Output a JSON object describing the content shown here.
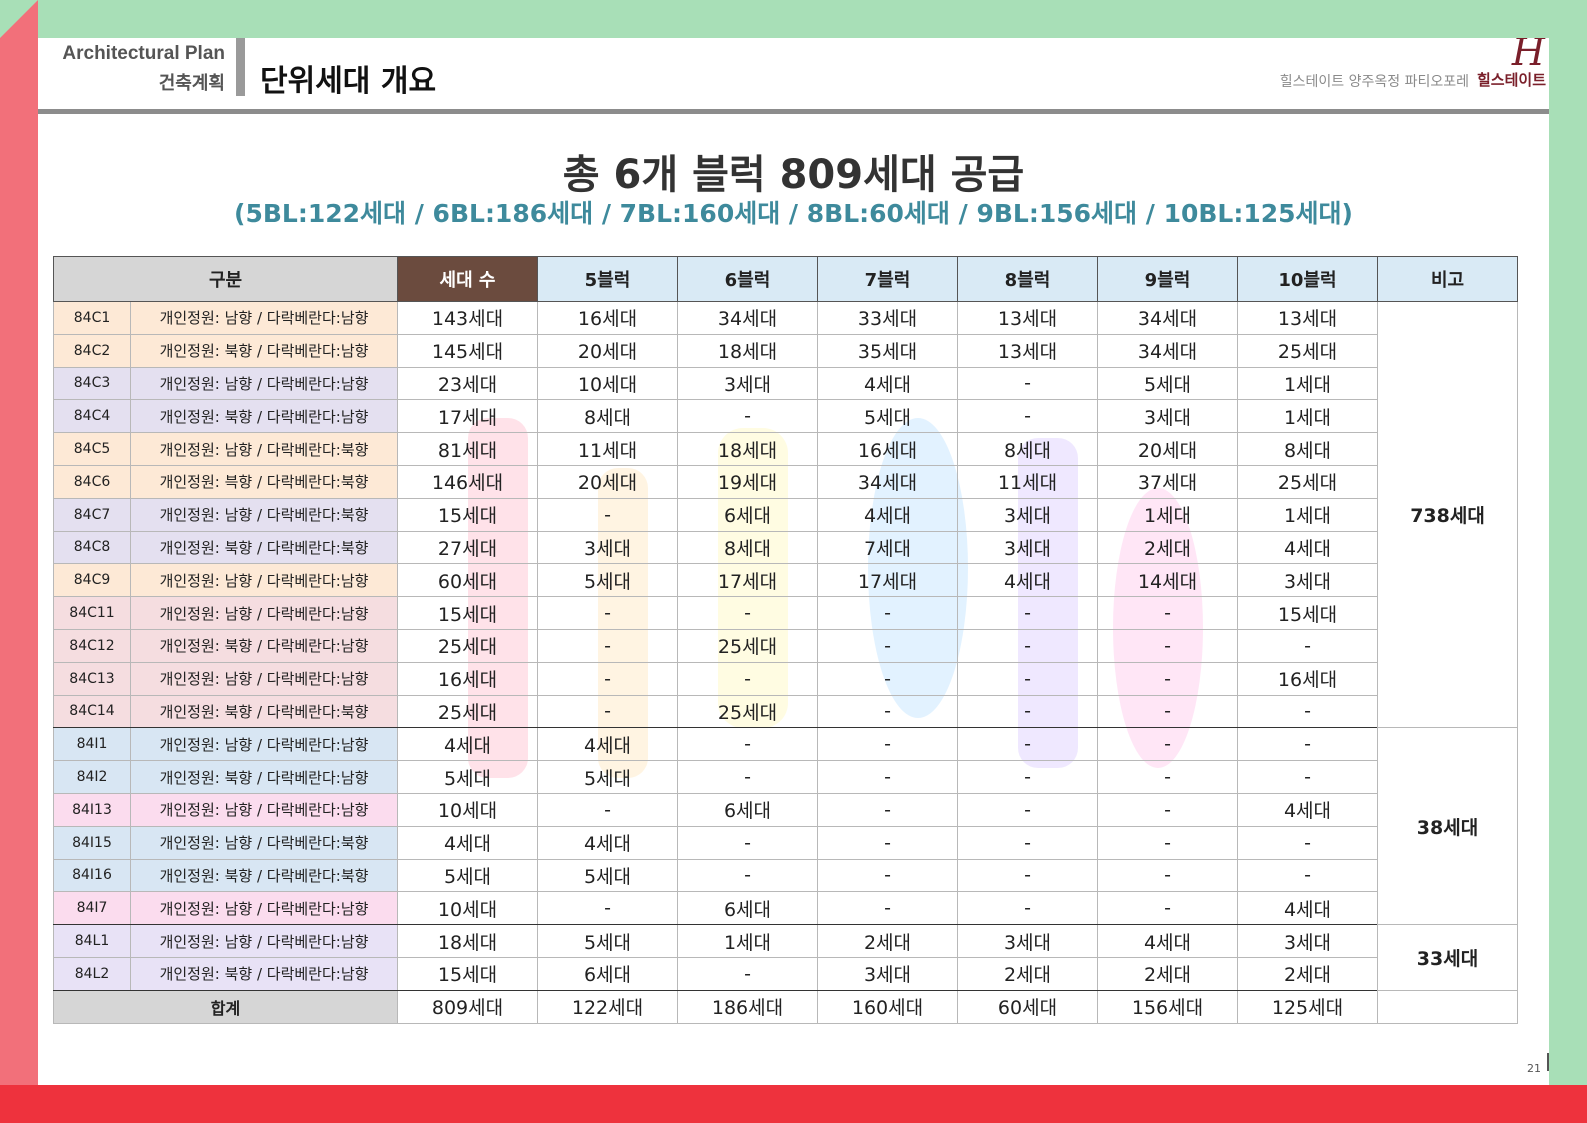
{
  "header": {
    "section_en": "Architectural Plan",
    "section_ko": "건축계획",
    "page_title": "단위세대 개요",
    "project_name": "힐스테이트 양주옥정 파티오포레",
    "brand_name": "힐스테이트",
    "brand_mark": "H"
  },
  "headline": {
    "main": "총 6개 블럭 809세대 공급",
    "sub": "(5BL:122세대 / 6BL:186세대 / 7BL:160세대 / 8BL:60세대 / 9BL:156세대 / 10BL:125세대)"
  },
  "table": {
    "headers": {
      "gubun": "구분",
      "total": "세대 수",
      "blocks": [
        "5블럭",
        "6블럭",
        "7블럭",
        "8블럭",
        "9블럭",
        "10블럭"
      ],
      "note": "비고"
    },
    "rows": [
      {
        "type": "84C1",
        "desc": "개인정원: 남향 / 다락베란다:남향",
        "total": "143세대",
        "blocks": [
          "16세대",
          "34세대",
          "33세대",
          "13세대",
          "34세대",
          "13세대"
        ]
      },
      {
        "type": "84C2",
        "desc": "개인정원: 북향 / 다락베란다:남향",
        "total": "145세대",
        "blocks": [
          "20세대",
          "18세대",
          "35세대",
          "13세대",
          "34세대",
          "25세대"
        ]
      },
      {
        "type": "84C3",
        "desc": "개인정원: 남향 / 다락베란다:남향",
        "total": "23세대",
        "blocks": [
          "10세대",
          "3세대",
          "4세대",
          "-",
          "5세대",
          "1세대"
        ]
      },
      {
        "type": "84C4",
        "desc": "개인정원: 북향 / 다락베란다:남향",
        "total": "17세대",
        "blocks": [
          "8세대",
          "-",
          "5세대",
          "-",
          "3세대",
          "1세대"
        ]
      },
      {
        "type": "84C5",
        "desc": "개인정원: 남향 / 다락베란다:북향",
        "total": "81세대",
        "blocks": [
          "11세대",
          "18세대",
          "16세대",
          "8세대",
          "20세대",
          "8세대"
        ]
      },
      {
        "type": "84C6",
        "desc": "개인정원: 븍향 / 다락베란다:북향",
        "total": "146세대",
        "blocks": [
          "20세대",
          "19세대",
          "34세대",
          "11세대",
          "37세대",
          "25세대"
        ]
      },
      {
        "type": "84C7",
        "desc": "개인정원: 남향 / 다락베란다:북향",
        "total": "15세대",
        "blocks": [
          "-",
          "6세대",
          "4세대",
          "3세대",
          "1세대",
          "1세대"
        ]
      },
      {
        "type": "84C8",
        "desc": "개인정원: 북향 / 다락베란다:북향",
        "total": "27세대",
        "blocks": [
          "3세대",
          "8세대",
          "7세대",
          "3세대",
          "2세대",
          "4세대"
        ]
      },
      {
        "type": "84C9",
        "desc": "개인정원: 남향 / 다락베란다:남향",
        "total": "60세대",
        "blocks": [
          "5세대",
          "17세대",
          "17세대",
          "4세대",
          "14세대",
          "3세대"
        ]
      },
      {
        "type": "84C11",
        "desc": "개인정원: 남향 / 다락베란다:남향",
        "total": "15세대",
        "blocks": [
          "-",
          "-",
          "-",
          "-",
          "-",
          "15세대"
        ]
      },
      {
        "type": "84C12",
        "desc": "개인정원: 북향 / 다락베란다:남향",
        "total": "25세대",
        "blocks": [
          "-",
          "25세대",
          "-",
          "-",
          "-",
          "-"
        ]
      },
      {
        "type": "84C13",
        "desc": "개인정원: 남향 / 다락베란다:남향",
        "total": "16세대",
        "blocks": [
          "-",
          "-",
          "-",
          "-",
          "-",
          "16세대"
        ]
      },
      {
        "type": "84C14",
        "desc": "개인정원: 북향 / 다락베란다:북향",
        "total": "25세대",
        "blocks": [
          "-",
          "25세대",
          "-",
          "-",
          "-",
          "-"
        ]
      },
      {
        "type": "84I1",
        "desc": "개인정원: 남향 / 다락베란다:남향",
        "total": "4세대",
        "blocks": [
          "4세대",
          "-",
          "-",
          "-",
          "-",
          "-"
        ]
      },
      {
        "type": "84I2",
        "desc": "개인정원: 북향 / 다락베란다:남향",
        "total": "5세대",
        "blocks": [
          "5세대",
          "-",
          "-",
          "-",
          "-",
          "-"
        ]
      },
      {
        "type": "84I13",
        "desc": "개인정원: 남향 / 다락베란다:남향",
        "total": "10세대",
        "blocks": [
          "-",
          "6세대",
          "-",
          "-",
          "-",
          "4세대"
        ]
      },
      {
        "type": "84I15",
        "desc": "개인정원: 남향 / 다락베란다:북향",
        "total": "4세대",
        "blocks": [
          "4세대",
          "-",
          "-",
          "-",
          "-",
          "-"
        ]
      },
      {
        "type": "84I16",
        "desc": "개인정원: 북향 / 다락베란다:북향",
        "total": "5세대",
        "blocks": [
          "5세대",
          "-",
          "-",
          "-",
          "-",
          "-"
        ]
      },
      {
        "type": "84I7",
        "desc": "개인정원: 남향 / 다락베란다:남향",
        "total": "10세대",
        "blocks": [
          "-",
          "6세대",
          "-",
          "-",
          "-",
          "4세대"
        ]
      },
      {
        "type": "84L1",
        "desc": "개인정원: 남향 / 다락베란다:남향",
        "total": "18세대",
        "blocks": [
          "5세대",
          "1세대",
          "2세대",
          "3세대",
          "4세대",
          "3세대"
        ]
      },
      {
        "type": "84L2",
        "desc": "개인정원: 북향 / 다락베란다:남향",
        "total": "15세대",
        "blocks": [
          "6세대",
          "-",
          "3세대",
          "2세대",
          "2세대",
          "2세대"
        ]
      }
    ],
    "notes": {
      "c_group": "738세대",
      "i_group": "38세대",
      "l_group": "33세대"
    },
    "total_row": {
      "label": "합계",
      "total": "809세대",
      "blocks": [
        "122세대",
        "186세대",
        "160세대",
        "60세대",
        "156세대",
        "125세대"
      ],
      "note": ""
    }
  },
  "footer": {
    "page_number": "21"
  }
}
